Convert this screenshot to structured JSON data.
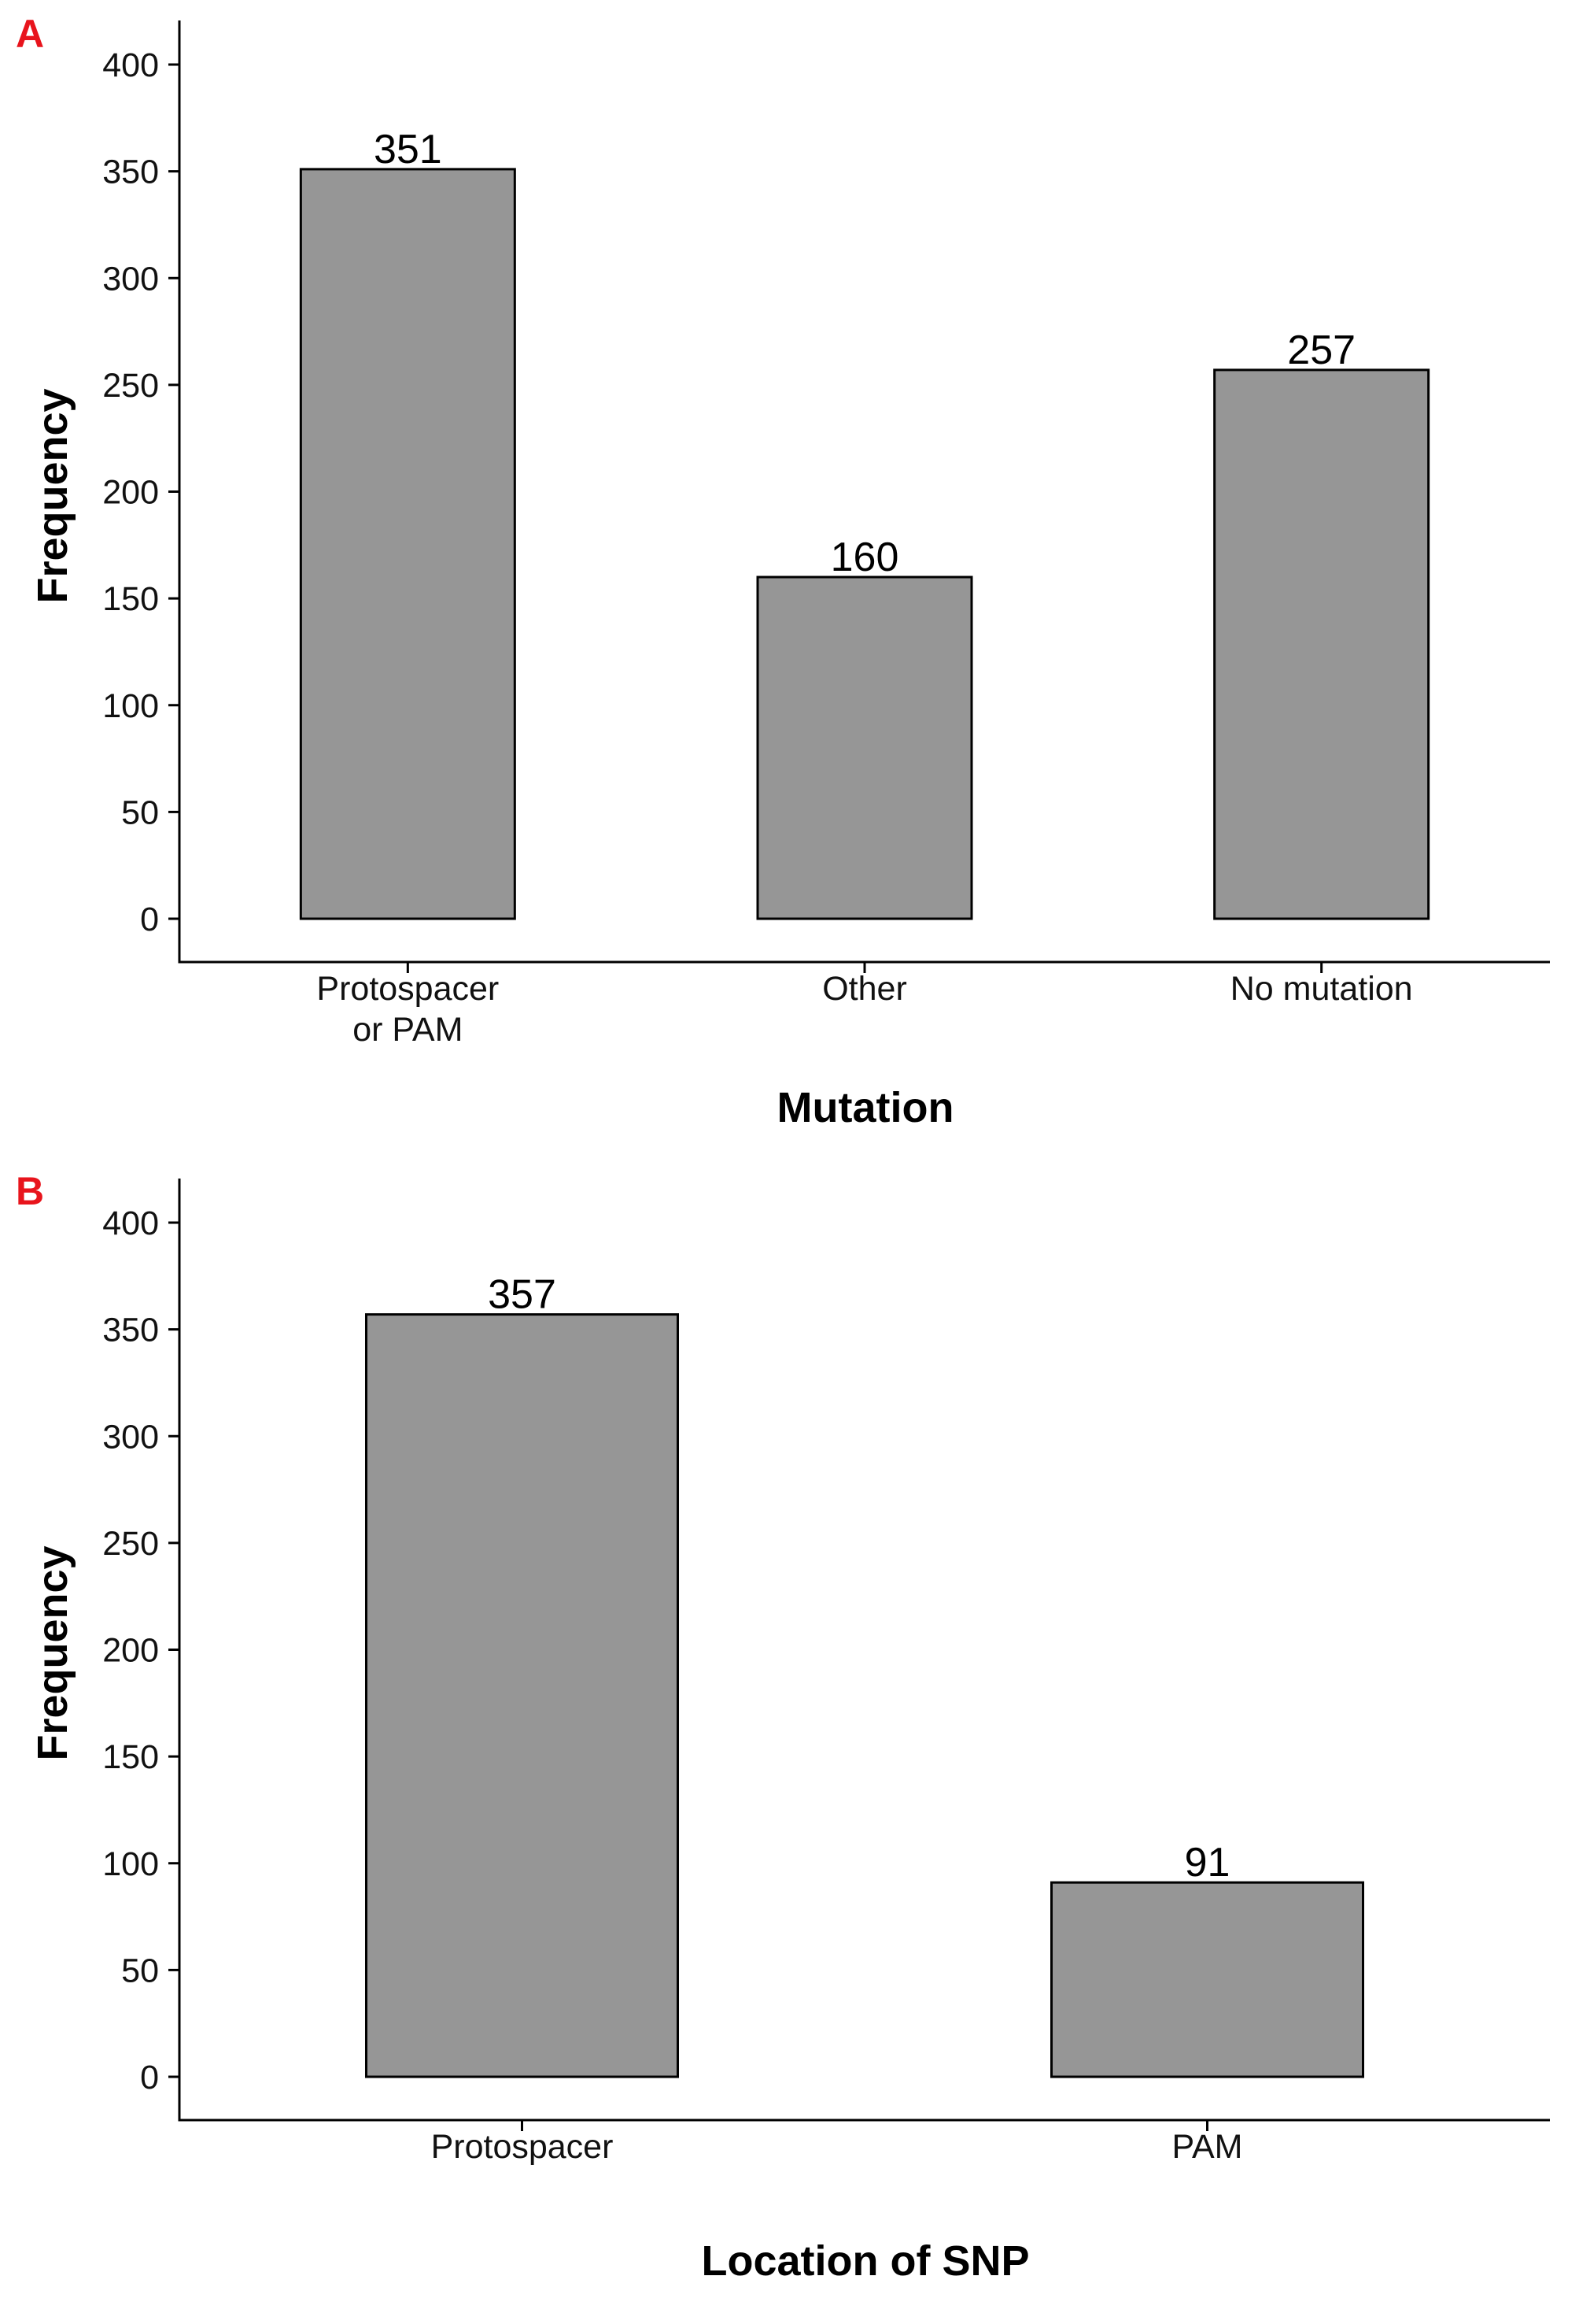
{
  "colors": {
    "bar_fill": "#969696",
    "bar_stroke": "#000000",
    "axis": "#000000",
    "panel_letter": "#e8141c"
  },
  "chart_data": [
    {
      "panel_label": "A",
      "type": "bar",
      "categories": [
        "Protospacer\nor PAM",
        "Other",
        "No mutation"
      ],
      "values": [
        351,
        160,
        257
      ],
      "data_labels": [
        "351",
        "160",
        "257"
      ],
      "xlabel": "Mutation",
      "ylabel": "Frequency",
      "ylim": [
        0,
        420
      ],
      "yticks": [
        0,
        50,
        100,
        150,
        200,
        250,
        300,
        350,
        400
      ],
      "grid": false,
      "legend": "none"
    },
    {
      "panel_label": "B",
      "type": "bar",
      "categories": [
        "Protospacer",
        "PAM"
      ],
      "values": [
        357,
        91
      ],
      "data_labels": [
        "357",
        "91"
      ],
      "xlabel": "Location of SNP",
      "ylabel": "Frequency",
      "ylim": [
        0,
        420
      ],
      "yticks": [
        0,
        50,
        100,
        150,
        200,
        250,
        300,
        350,
        400
      ],
      "grid": false,
      "legend": "none"
    }
  ]
}
